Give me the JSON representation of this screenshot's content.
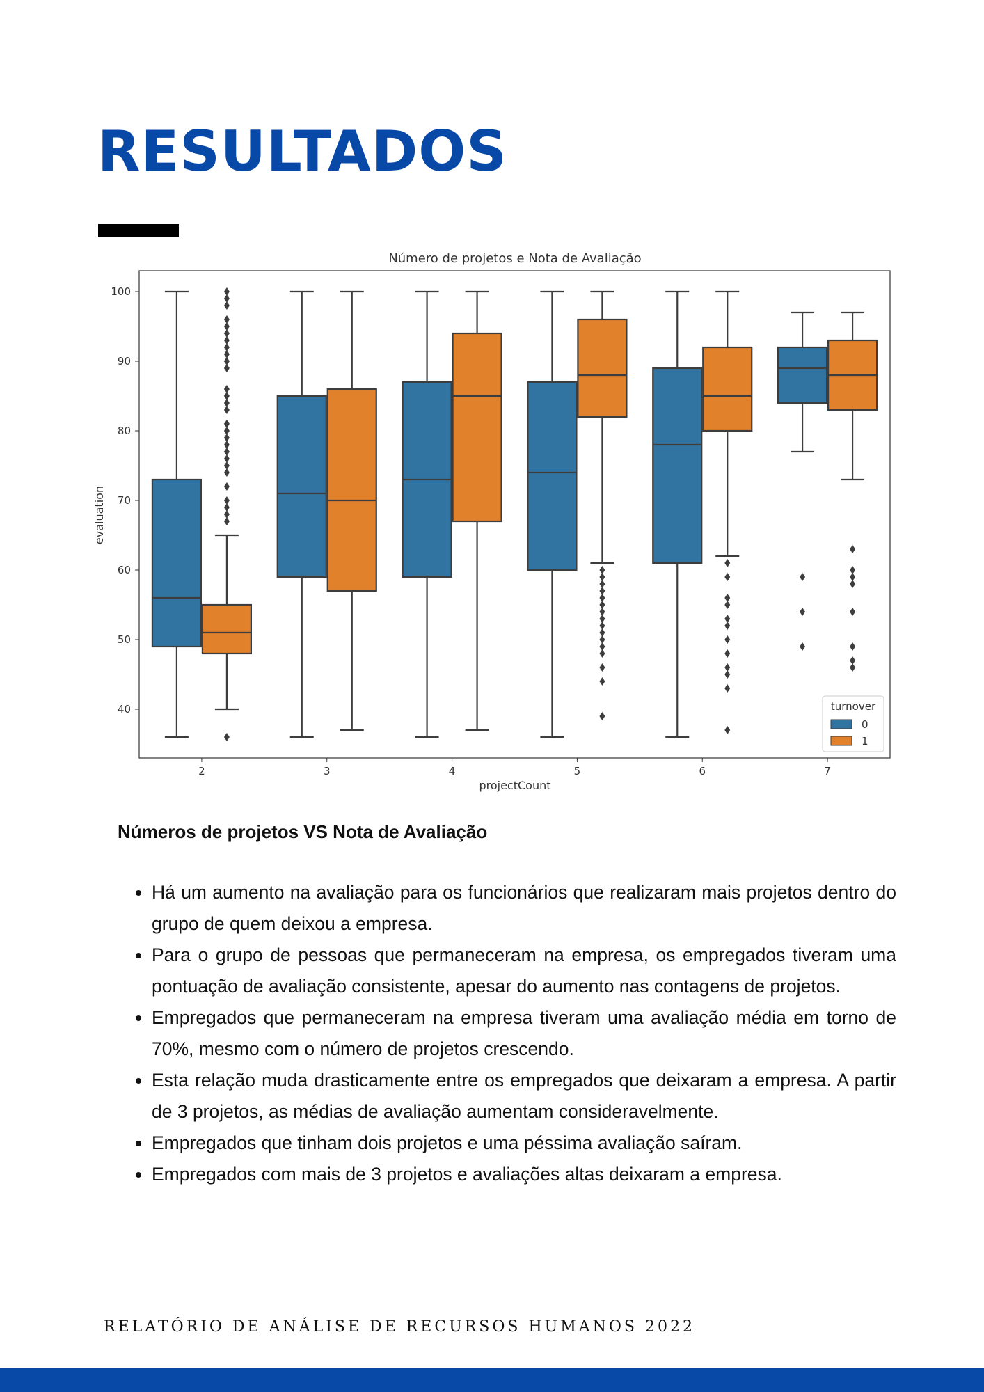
{
  "page": {
    "title": "RESULTADOS",
    "subtitle": "Números de projetos VS Nota de Avaliação",
    "bullets": [
      "Há um aumento na avaliação para os funcionários que realizaram mais projetos dentro do grupo de quem deixou a empresa.",
      "Para o grupo de pessoas que permaneceram na empresa, os empregados tiveram uma pontuação de avaliação consistente, apesar do aumento nas contagens de projetos.",
      "Empregados que permaneceram na empresa tiveram uma avaliação média em torno de 70%, mesmo com o número de projetos crescendo.",
      "Esta relação muda drasticamente entre os empregados que deixaram a empresa. A partir de 3 projetos, as médias de avaliação aumentam consideravelmente.",
      "Empregados que tinham dois projetos e uma péssima avaliação saíram.",
      "Empregados com mais de 3 projetos e avaliações altas deixaram a empresa."
    ],
    "footer": "RELATÓRIO DE ANÁLISE DE RECURSOS HUMANOS 2022",
    "accent_color": "#0849a8"
  },
  "chart_data": {
    "type": "box",
    "title": "Número de projetos e Nota de Avaliação",
    "xlabel": "projectCount",
    "ylabel": "evaluation",
    "categories": [
      "2",
      "3",
      "4",
      "5",
      "6",
      "7"
    ],
    "ylim": [
      33,
      103
    ],
    "yticks": [
      40,
      50,
      60,
      70,
      80,
      90,
      100
    ],
    "legend": {
      "title": "turnover",
      "position": "bottom-right"
    },
    "series": [
      {
        "name": "0",
        "color": "#3274a1",
        "boxes": [
          {
            "whisker_low": 36,
            "q1": 49,
            "median": 56,
            "q3": 73,
            "whisker_high": 100,
            "outliers": []
          },
          {
            "whisker_low": 36,
            "q1": 59,
            "median": 71,
            "q3": 85,
            "whisker_high": 100,
            "outliers": []
          },
          {
            "whisker_low": 36,
            "q1": 59,
            "median": 73,
            "q3": 87,
            "whisker_high": 100,
            "outliers": []
          },
          {
            "whisker_low": 36,
            "q1": 60,
            "median": 74,
            "q3": 87,
            "whisker_high": 100,
            "outliers": []
          },
          {
            "whisker_low": 36,
            "q1": 61,
            "median": 78,
            "q3": 89,
            "whisker_high": 100,
            "outliers": []
          },
          {
            "whisker_low": 77,
            "q1": 84,
            "median": 89,
            "q3": 92,
            "whisker_high": 97,
            "outliers": [
              59,
              54,
              49
            ]
          }
        ]
      },
      {
        "name": "1",
        "color": "#e1812c",
        "boxes": [
          {
            "whisker_low": 40,
            "q1": 48,
            "median": 51,
            "q3": 55,
            "whisker_high": 65,
            "outliers": [
              36,
              67,
              68,
              69,
              70,
              72,
              74,
              75,
              76,
              77,
              78,
              79,
              80,
              81,
              83,
              84,
              85,
              86,
              89,
              90,
              91,
              92,
              93,
              94,
              95,
              96,
              98,
              99,
              100
            ]
          },
          {
            "whisker_low": 37,
            "q1": 57,
            "median": 70,
            "q3": 86,
            "whisker_high": 100,
            "outliers": []
          },
          {
            "whisker_low": 37,
            "q1": 67,
            "median": 85,
            "q3": 94,
            "whisker_high": 100,
            "outliers": []
          },
          {
            "whisker_low": 61,
            "q1": 82,
            "median": 88,
            "q3": 96,
            "whisker_high": 100,
            "outliers": [
              60,
              59,
              58,
              57,
              56,
              55,
              54,
              53,
              52,
              51,
              50,
              49,
              48,
              46,
              44,
              39
            ]
          },
          {
            "whisker_low": 62,
            "q1": 80,
            "median": 85,
            "q3": 92,
            "whisker_high": 100,
            "outliers": [
              61,
              59,
              56,
              55,
              53,
              52,
              50,
              48,
              46,
              45,
              43,
              37
            ]
          },
          {
            "whisker_low": 73,
            "q1": 83,
            "median": 88,
            "q3": 93,
            "whisker_high": 97,
            "outliers": [
              63,
              60,
              59,
              58,
              54,
              49,
              47,
              46
            ]
          }
        ]
      }
    ]
  }
}
